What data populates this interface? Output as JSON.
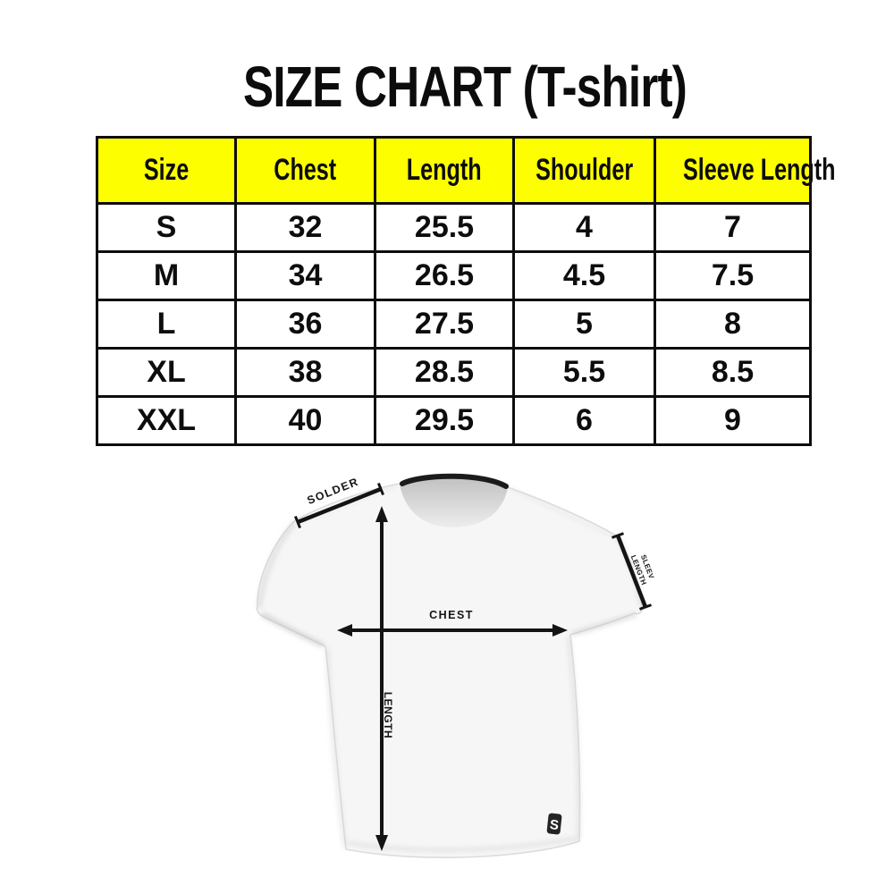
{
  "page": {
    "title": "SIZE CHART (T-shirt)",
    "background": "#ffffff",
    "text_color": "#0d0d0d"
  },
  "size_table": {
    "header_bg": "#fdff00",
    "border_color": "#0d0d0d",
    "columns": [
      "Size",
      "Chest",
      "Length",
      "Shoulder",
      "Sleeve Length"
    ],
    "rows": [
      [
        "S",
        "32",
        "25.5",
        "4",
        "7"
      ],
      [
        "M",
        "34",
        "26.5",
        "4.5",
        "7.5"
      ],
      [
        "L",
        "36",
        "27.5",
        "5",
        "8"
      ],
      [
        "XL",
        "38",
        "28.5",
        "5.5",
        "8.5"
      ],
      [
        "XXL",
        "40",
        "29.5",
        "6",
        "9"
      ]
    ]
  },
  "diagram": {
    "shoulder_label": "SOLDER",
    "chest_label": "CHEST",
    "length_label": "LENGTH",
    "sleeve_label_line1": "SLEEV",
    "sleeve_label_line2": "LENGTH",
    "logo_letter": "S",
    "line_color": "#141414",
    "shirt_fill": "#f6f6f6",
    "collar_color": "#1b1b1b"
  }
}
